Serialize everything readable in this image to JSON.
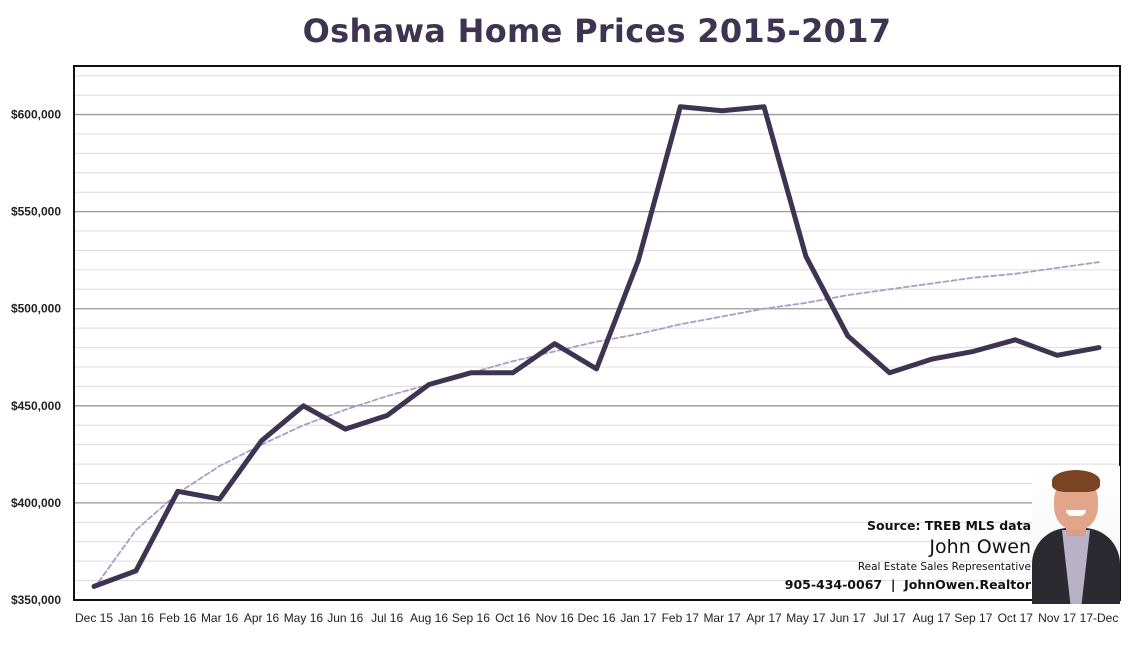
{
  "chart_data": {
    "type": "line",
    "title": "Oshawa Home Prices 2015-2017",
    "categories": [
      "Dec 15",
      "Jan 16",
      "Feb 16",
      "Mar 16",
      "Apr 16",
      "May 16",
      "Jun 16",
      "Jul 16",
      "Aug 16",
      "Sep 16",
      "Oct 16",
      "Nov 16",
      "Dec 16",
      "Jan 17",
      "Feb 17",
      "Mar 17",
      "Apr 17",
      "May 17",
      "Jun 17",
      "Jul 17",
      "Aug 17",
      "Sep 17",
      "Oct 17",
      "Nov 17",
      "17-Dec"
    ],
    "series": [
      {
        "name": "",
        "values": [
          357000,
          365000,
          406000,
          402000,
          432000,
          450000,
          438000,
          445000,
          461000,
          467000,
          467000,
          482000,
          469000,
          525000,
          604000,
          602000,
          604000,
          527000,
          486000,
          467000,
          474000,
          478000,
          484000,
          476000,
          480000
        ],
        "color": "#3f3352"
      },
      {
        "name": "",
        "trendline": true,
        "values": [
          356000,
          386000,
          405000,
          419000,
          430000,
          440000,
          448000,
          455000,
          461000,
          467000,
          473000,
          478000,
          483000,
          487000,
          492000,
          496000,
          500000,
          503000,
          507000,
          510000,
          513000,
          516000,
          518000,
          521000,
          524000
        ],
        "color": "#a99dc6"
      }
    ],
    "ylim": [
      350000,
      625000
    ],
    "yticks": [
      350000,
      400000,
      450000,
      500000,
      550000,
      600000
    ],
    "ytick_labels": [
      "$350,000",
      "$400,000",
      "$450,000",
      "$500,000",
      "$550,000",
      "$600,000"
    ],
    "xlabel": "",
    "ylabel": "",
    "grid": true
  },
  "credit": {
    "source": "Source: TREB MLS data",
    "name": "John Owen",
    "role": "Real Estate Sales Representative",
    "phone": "905-434-0067",
    "website": "JohnOwen.Realtor"
  },
  "photo": {
    "icon": "portrait-photo"
  }
}
